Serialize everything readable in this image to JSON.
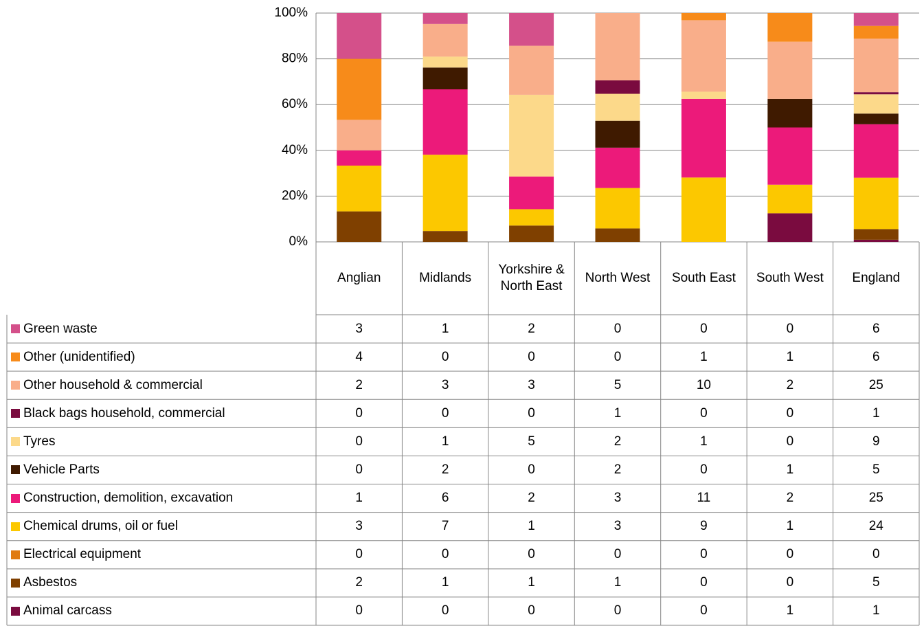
{
  "chart_data": {
    "type": "stacked_bar_100",
    "categories": [
      "Anglian",
      "Midlands",
      "Yorkshire & North East",
      "North West",
      "South East",
      "South West",
      "England"
    ],
    "series": [
      {
        "name": "Animal carcass",
        "color": "#7a0b3f",
        "values": [
          0,
          0,
          0,
          0,
          0,
          1,
          1
        ]
      },
      {
        "name": "Asbestos",
        "color": "#7f4000",
        "values": [
          2,
          1,
          1,
          1,
          0,
          0,
          5
        ]
      },
      {
        "name": "Electrical equipment",
        "color": "#e07a10",
        "values": [
          0,
          0,
          0,
          0,
          0,
          0,
          0
        ]
      },
      {
        "name": "Chemical drums, oil or fuel",
        "color": "#fcc800",
        "values": [
          3,
          7,
          1,
          3,
          9,
          1,
          24
        ]
      },
      {
        "name": "Construction, demolition, excavation",
        "color": "#ec1a7a",
        "values": [
          1,
          6,
          2,
          3,
          11,
          2,
          25
        ]
      },
      {
        "name": "Vehicle Parts",
        "color": "#3f1a00",
        "values": [
          0,
          2,
          0,
          2,
          0,
          1,
          5
        ]
      },
      {
        "name": "Tyres",
        "color": "#fcd98a",
        "values": [
          0,
          1,
          5,
          2,
          1,
          0,
          9
        ]
      },
      {
        "name": "Black bags household, commercial",
        "color": "#7a0b3f",
        "values": [
          0,
          0,
          0,
          1,
          0,
          0,
          1
        ]
      },
      {
        "name": "Other household & commercial",
        "color": "#f9ae8a",
        "values": [
          2,
          3,
          3,
          5,
          10,
          2,
          25
        ]
      },
      {
        "name": "Other (unidentified)",
        "color": "#f78b1a",
        "values": [
          4,
          0,
          0,
          0,
          1,
          1,
          6
        ]
      },
      {
        "name": "Green waste",
        "color": "#d4508a",
        "values": [
          3,
          1,
          2,
          0,
          0,
          0,
          6
        ]
      }
    ],
    "ylim": [
      0,
      100
    ],
    "yticks": [
      {
        "value": 0,
        "label": "0%"
      },
      {
        "value": 20,
        "label": "20%"
      },
      {
        "value": 40,
        "label": "40%"
      },
      {
        "value": 60,
        "label": "60%"
      },
      {
        "value": 80,
        "label": "80%"
      },
      {
        "value": 100,
        "label": "100%"
      }
    ],
    "grid": true
  }
}
